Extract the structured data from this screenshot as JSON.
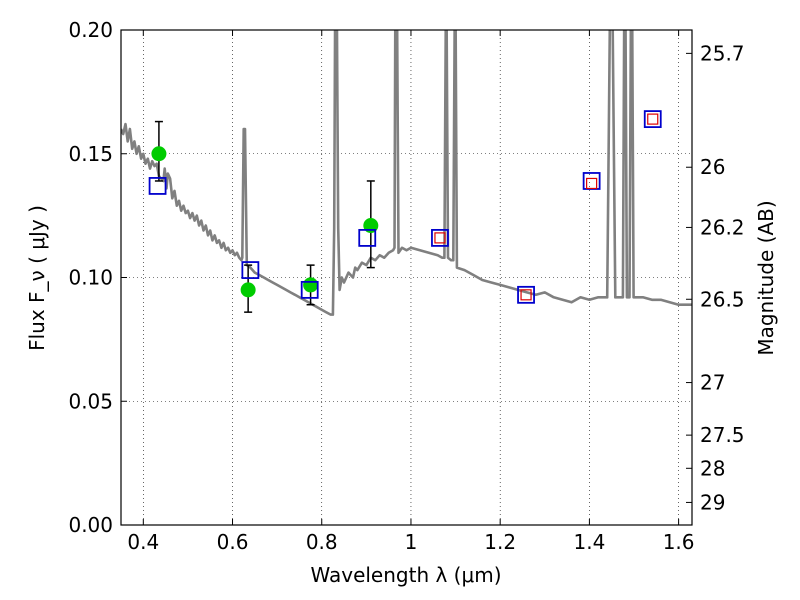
{
  "chart_data": {
    "type": "scatter",
    "title": "",
    "xlabel": "Wavelength  λ (μm)",
    "ylabel": "Flux  F_ν  ( μJy )",
    "ylabel_right": "Magnitude (AB)",
    "xlim": [
      0.35,
      1.63
    ],
    "ylim": [
      0.0,
      0.2
    ],
    "grid": true,
    "xticks": [
      {
        "value": 0.4,
        "label": "0.4"
      },
      {
        "value": 0.6,
        "label": "0.6"
      },
      {
        "value": 0.8,
        "label": "0.8"
      },
      {
        "value": 1.0,
        "label": "1"
      },
      {
        "value": 1.2,
        "label": "1.2"
      },
      {
        "value": 1.4,
        "label": "1.4"
      },
      {
        "value": 1.6,
        "label": "1.6"
      }
    ],
    "yticks": [
      {
        "value": 0.0,
        "label": "0.00"
      },
      {
        "value": 0.05,
        "label": "0.05"
      },
      {
        "value": 0.1,
        "label": "0.10"
      },
      {
        "value": 0.15,
        "label": "0.15"
      },
      {
        "value": 0.2,
        "label": "0.20"
      }
    ],
    "mag_ticks": [
      {
        "value": 25.7,
        "label": "25.7"
      },
      {
        "value": 26.0,
        "label": "26"
      },
      {
        "value": 26.2,
        "label": "26.2"
      },
      {
        "value": 26.5,
        "label": "26.5"
      },
      {
        "value": 27.0,
        "label": "27"
      },
      {
        "value": 27.5,
        "label": "27.5"
      },
      {
        "value": 28.0,
        "label": "28"
      },
      {
        "value": 29.0,
        "label": "29"
      }
    ],
    "colors": {
      "model": "#808080",
      "observed": "#00cc00",
      "model_photometry": "#0000cc",
      "predicted": "#dd0000",
      "errorbar": "#000000"
    },
    "series": [
      {
        "kind": "line",
        "points": [
          [
            0.35,
            0.16
          ],
          [
            0.355,
            0.158
          ],
          [
            0.36,
            0.162
          ],
          [
            0.365,
            0.155
          ],
          [
            0.37,
            0.16
          ],
          [
            0.375,
            0.152
          ],
          [
            0.38,
            0.155
          ],
          [
            0.385,
            0.15
          ],
          [
            0.39,
            0.153
          ],
          [
            0.395,
            0.148
          ],
          [
            0.4,
            0.15
          ],
          [
            0.405,
            0.146
          ],
          [
            0.41,
            0.148
          ],
          [
            0.415,
            0.144
          ],
          [
            0.42,
            0.147
          ],
          [
            0.425,
            0.145
          ],
          [
            0.43,
            0.146
          ],
          [
            0.435,
            0.141
          ],
          [
            0.44,
            0.14
          ],
          [
            0.445,
            0.139
          ],
          [
            0.448,
            0.144
          ],
          [
            0.452,
            0.136
          ],
          [
            0.455,
            0.142
          ],
          [
            0.46,
            0.14
          ],
          [
            0.465,
            0.132
          ],
          [
            0.47,
            0.135
          ],
          [
            0.475,
            0.129
          ],
          [
            0.48,
            0.131
          ],
          [
            0.485,
            0.127
          ],
          [
            0.49,
            0.129
          ],
          [
            0.495,
            0.126
          ],
          [
            0.5,
            0.127
          ],
          [
            0.505,
            0.124
          ],
          [
            0.51,
            0.126
          ],
          [
            0.515,
            0.123
          ],
          [
            0.52,
            0.125
          ],
          [
            0.525,
            0.121
          ],
          [
            0.53,
            0.123
          ],
          [
            0.535,
            0.119
          ],
          [
            0.54,
            0.121
          ],
          [
            0.545,
            0.117
          ],
          [
            0.55,
            0.119
          ],
          [
            0.555,
            0.115
          ],
          [
            0.56,
            0.117
          ],
          [
            0.565,
            0.114
          ],
          [
            0.57,
            0.115
          ],
          [
            0.575,
            0.112
          ],
          [
            0.58,
            0.114
          ],
          [
            0.585,
            0.111
          ],
          [
            0.59,
            0.112
          ],
          [
            0.595,
            0.11
          ],
          [
            0.6,
            0.111
          ],
          [
            0.605,
            0.109
          ],
          [
            0.61,
            0.11
          ],
          [
            0.615,
            0.108
          ],
          [
            0.62,
            0.107
          ],
          [
            0.622,
            0.108
          ],
          [
            0.625,
            0.16
          ],
          [
            0.628,
            0.16
          ],
          [
            0.632,
            0.105
          ],
          [
            0.64,
            0.104
          ],
          [
            0.65,
            0.102
          ],
          [
            0.66,
            0.101
          ],
          [
            0.67,
            0.1
          ],
          [
            0.68,
            0.099
          ],
          [
            0.69,
            0.098
          ],
          [
            0.7,
            0.097
          ],
          [
            0.71,
            0.096
          ],
          [
            0.72,
            0.095
          ],
          [
            0.73,
            0.094
          ],
          [
            0.74,
            0.093
          ],
          [
            0.75,
            0.092
          ],
          [
            0.76,
            0.091
          ],
          [
            0.77,
            0.09
          ],
          [
            0.78,
            0.089
          ],
          [
            0.79,
            0.088
          ],
          [
            0.8,
            0.087
          ],
          [
            0.81,
            0.086
          ],
          [
            0.82,
            0.085
          ],
          [
            0.825,
            0.085
          ],
          [
            0.828,
            0.12
          ],
          [
            0.83,
            0.205
          ],
          [
            0.834,
            0.205
          ],
          [
            0.837,
            0.12
          ],
          [
            0.84,
            0.095
          ],
          [
            0.845,
            0.1
          ],
          [
            0.85,
            0.098
          ],
          [
            0.86,
            0.102
          ],
          [
            0.87,
            0.1
          ],
          [
            0.875,
            0.104
          ],
          [
            0.88,
            0.103
          ],
          [
            0.89,
            0.106
          ],
          [
            0.9,
            0.105
          ],
          [
            0.91,
            0.108
          ],
          [
            0.92,
            0.107
          ],
          [
            0.93,
            0.109
          ],
          [
            0.94,
            0.108
          ],
          [
            0.95,
            0.11
          ],
          [
            0.96,
            0.111
          ],
          [
            0.963,
            0.112
          ],
          [
            0.965,
            0.205
          ],
          [
            0.969,
            0.205
          ],
          [
            0.972,
            0.11
          ],
          [
            0.98,
            0.112
          ],
          [
            0.99,
            0.111
          ],
          [
            1.0,
            0.112
          ],
          [
            1.02,
            0.111
          ],
          [
            1.04,
            0.11
          ],
          [
            1.06,
            0.109
          ],
          [
            1.07,
            0.108
          ],
          [
            1.075,
            0.108
          ],
          [
            1.078,
            0.205
          ],
          [
            1.08,
            0.205
          ],
          [
            1.083,
            0.108
          ],
          [
            1.09,
            0.107
          ],
          [
            1.095,
            0.107
          ],
          [
            1.098,
            0.205
          ],
          [
            1.1,
            0.205
          ],
          [
            1.103,
            0.104
          ],
          [
            1.12,
            0.103
          ],
          [
            1.14,
            0.101
          ],
          [
            1.16,
            0.099
          ],
          [
            1.18,
            0.098
          ],
          [
            1.2,
            0.097
          ],
          [
            1.22,
            0.096
          ],
          [
            1.24,
            0.095
          ],
          [
            1.26,
            0.094
          ],
          [
            1.28,
            0.093
          ],
          [
            1.3,
            0.094
          ],
          [
            1.32,
            0.092
          ],
          [
            1.34,
            0.091
          ],
          [
            1.36,
            0.09
          ],
          [
            1.38,
            0.092
          ],
          [
            1.4,
            0.091
          ],
          [
            1.42,
            0.092
          ],
          [
            1.44,
            0.092
          ],
          [
            1.443,
            0.15
          ],
          [
            1.446,
            0.205
          ],
          [
            1.452,
            0.205
          ],
          [
            1.455,
            0.15
          ],
          [
            1.458,
            0.092
          ],
          [
            1.47,
            0.092
          ],
          [
            1.475,
            0.092
          ],
          [
            1.478,
            0.205
          ],
          [
            1.481,
            0.205
          ],
          [
            1.484,
            0.092
          ],
          [
            1.49,
            0.092
          ],
          [
            1.493,
            0.205
          ],
          [
            1.496,
            0.205
          ],
          [
            1.499,
            0.092
          ],
          [
            1.52,
            0.092
          ],
          [
            1.54,
            0.091
          ],
          [
            1.56,
            0.091
          ],
          [
            1.58,
            0.09
          ],
          [
            1.6,
            0.089
          ],
          [
            1.62,
            0.089
          ],
          [
            1.63,
            0.089
          ]
        ]
      },
      {
        "kind": "errorbar-points",
        "points": [
          {
            "x": 0.435,
            "y": 0.15,
            "err": [
              0.139,
              0.163
            ]
          },
          {
            "x": 0.635,
            "y": 0.095,
            "err": [
              0.086,
              0.105
            ]
          },
          {
            "x": 0.775,
            "y": 0.097,
            "err": [
              0.089,
              0.105
            ]
          },
          {
            "x": 0.91,
            "y": 0.121,
            "err": [
              0.104,
              0.139
            ]
          }
        ]
      },
      {
        "kind": "model-photometry",
        "points": [
          {
            "x": 0.432,
            "y": 0.137
          },
          {
            "x": 0.64,
            "y": 0.103
          },
          {
            "x": 0.773,
            "y": 0.095
          },
          {
            "x": 0.902,
            "y": 0.116
          },
          {
            "x": 1.065,
            "y": 0.116
          },
          {
            "x": 1.258,
            "y": 0.093
          },
          {
            "x": 1.405,
            "y": 0.139
          },
          {
            "x": 1.542,
            "y": 0.164
          }
        ]
      },
      {
        "kind": "predicted-photometry",
        "points": [
          {
            "x": 1.065,
            "y": 0.116
          },
          {
            "x": 1.258,
            "y": 0.093
          },
          {
            "x": 1.405,
            "y": 0.138
          },
          {
            "x": 1.542,
            "y": 0.164
          }
        ]
      }
    ]
  }
}
